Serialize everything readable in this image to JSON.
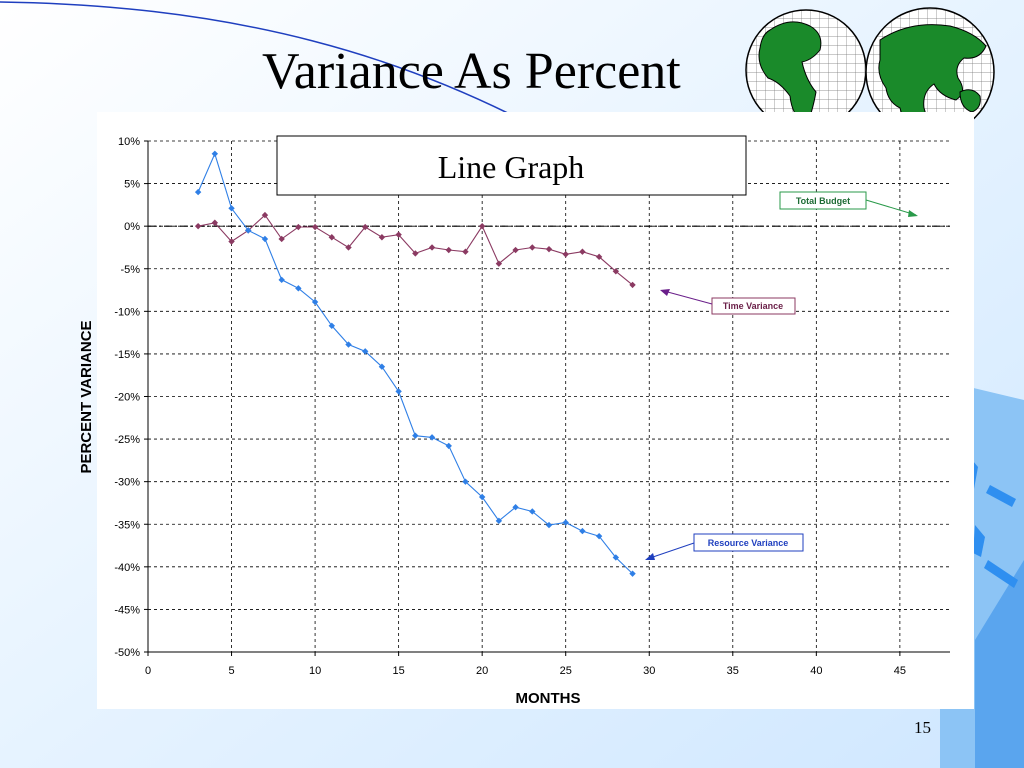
{
  "slide": {
    "title": "Variance As Percent",
    "page_number": "15"
  },
  "colors": {
    "background": "#dcefff",
    "accent_blue": "#3d8fe0",
    "globe_green": "#1a8a2a",
    "time_series": "#8b3a62",
    "resource_series": "#2f7fe6",
    "budget_green": "#2a9a4a"
  },
  "chart_data": {
    "type": "line",
    "title": "Line Graph",
    "xlabel": "MONTHS",
    "ylabel": "PERCENT VARIANCE",
    "xlim": [
      0,
      48
    ],
    "ylim": [
      -50,
      10
    ],
    "x_ticks": [
      0,
      5,
      10,
      15,
      20,
      25,
      30,
      35,
      40,
      45
    ],
    "y_ticks": [
      10,
      5,
      0,
      -5,
      -10,
      -15,
      -20,
      -25,
      -30,
      -35,
      -40,
      -45,
      -50
    ],
    "y_tick_labels": [
      "10%",
      "5%",
      "0%",
      "-5%",
      "-10%",
      "-15%",
      "-20%",
      "-25%",
      "-30%",
      "-35%",
      "-40%",
      "-45%",
      "-50%"
    ],
    "grid": true,
    "baseline": {
      "name": "Total Budget",
      "y": 0
    },
    "series": [
      {
        "name": "Time Variance",
        "x": [
          3,
          4,
          5,
          6,
          7,
          8,
          9,
          10,
          11,
          12,
          13,
          14,
          15,
          16,
          17,
          18,
          19,
          20,
          21,
          22,
          23,
          24,
          25,
          26,
          27,
          28,
          29
        ],
        "y": [
          0.0,
          0.4,
          -1.8,
          -0.5,
          1.3,
          -1.5,
          -0.1,
          -0.1,
          -1.3,
          -2.5,
          -0.1,
          -1.3,
          -1.0,
          -3.2,
          -2.5,
          -2.8,
          -3.0,
          0.0,
          -4.4,
          -2.8,
          -2.5,
          -2.7,
          -3.3,
          -3.0,
          -3.6,
          -5.3,
          -6.9
        ]
      },
      {
        "name": "Resource Variance",
        "x": [
          3,
          4,
          5,
          6,
          7,
          8,
          9,
          10,
          11,
          12,
          13,
          14,
          15,
          16,
          17,
          18,
          19,
          20,
          21,
          22,
          23,
          24,
          25,
          26,
          27,
          28,
          29
        ],
        "y": [
          4.0,
          8.5,
          2.1,
          -0.5,
          -1.5,
          -6.3,
          -7.3,
          -8.9,
          -11.7,
          -13.9,
          -14.7,
          -16.5,
          -19.4,
          -24.6,
          -24.8,
          -25.8,
          -30.0,
          -31.8,
          -34.6,
          -33.0,
          -33.5,
          -35.1,
          -34.8,
          -35.8,
          -36.4,
          -38.9,
          -40.8
        ]
      }
    ],
    "annotations": [
      "Total Budget",
      "Time Variance",
      "Resource Variance"
    ]
  }
}
